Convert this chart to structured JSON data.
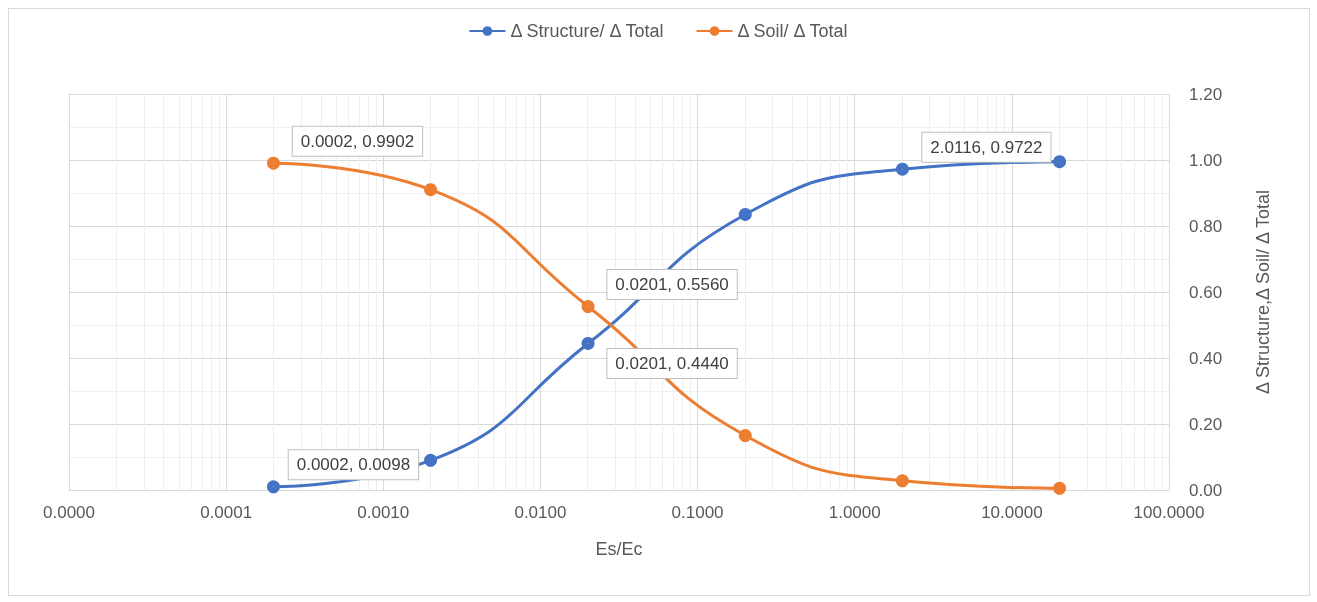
{
  "chart_data": {
    "type": "line",
    "xlabel": "Es/Ec",
    "ylabel": "Δ Structure,Δ Soil/ Δ Total",
    "log": "x",
    "grid": true,
    "legend": "top",
    "marker": "circle",
    "line_style": "solid",
    "x": [
      0.0002,
      0.002,
      0.0201,
      0.2011,
      2.0116,
      20.116
    ],
    "xlim": [
      1e-05,
      100
    ],
    "xticks": [
      {
        "value": 1e-05,
        "label": "0.0000"
      },
      {
        "value": 0.0001,
        "label": "0.0001"
      },
      {
        "value": 0.001,
        "label": "0.0010"
      },
      {
        "value": 0.01,
        "label": "0.0100"
      },
      {
        "value": 0.1,
        "label": "0.1000"
      },
      {
        "value": 1,
        "label": "1.0000"
      },
      {
        "value": 10,
        "label": "10.0000"
      },
      {
        "value": 100,
        "label": "100.0000"
      }
    ],
    "ylim": [
      0,
      1.2
    ],
    "yticks": [
      {
        "value": 0,
        "label": "0.00"
      },
      {
        "value": 0.2,
        "label": "0.20"
      },
      {
        "value": 0.4,
        "label": "0.40"
      },
      {
        "value": 0.6,
        "label": "0.60"
      },
      {
        "value": 0.8,
        "label": "0.80"
      },
      {
        "value": 1,
        "label": "1.00"
      },
      {
        "value": 1.2,
        "label": "1.20"
      }
    ],
    "series": [
      {
        "name": "Δ Structure/ Δ Total",
        "color": "#4472c4",
        "values": [
          0.0098,
          0.09,
          0.444,
          0.835,
          0.9722,
          0.995
        ]
      },
      {
        "name": "Δ Soil/ Δ Total",
        "color": "#ed7d31",
        "values": [
          0.9902,
          0.91,
          0.556,
          0.165,
          0.028,
          0.005
        ]
      }
    ],
    "annotations": [
      {
        "text": "0.0002, 0.9902",
        "x": 0.0002,
        "y": 0.9902
      },
      {
        "text": "0.0002, 0.0098",
        "x": 0.0002,
        "y": 0.0098
      },
      {
        "text": "0.0201, 0.5560",
        "x": 0.0201,
        "y": 0.556
      },
      {
        "text": "0.0201, 0.4440",
        "x": 0.0201,
        "y": 0.444
      },
      {
        "text": "2.0116, 0.9722",
        "x": 2.0116,
        "y": 0.9722
      }
    ]
  }
}
